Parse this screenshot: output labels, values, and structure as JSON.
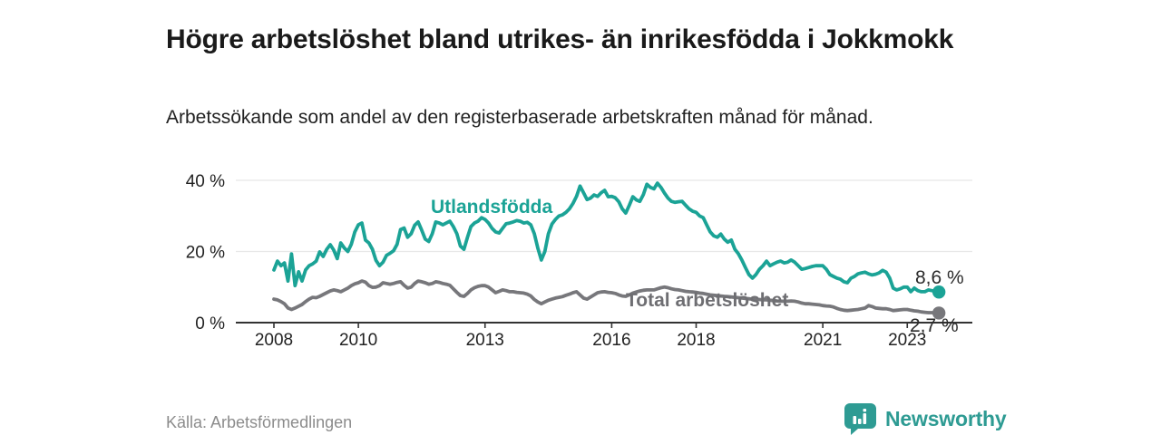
{
  "header": {
    "title": "Högre arbetslöshet bland utrikes- än inrikesfödda i Jokkmokk",
    "subtitle": "Arbetssökande som andel av den registerbaserade arbetskraften månad för månad."
  },
  "footer": {
    "source": "Källa: Arbetsförmedlingen"
  },
  "branding": {
    "name": "Newsworthy",
    "logo_icon": "bar-chart-speech-bubble"
  },
  "colors": {
    "teal": "#1BA396",
    "gray_line": "#77777B",
    "gray_label": "#6E6E72",
    "axis": "#333333",
    "grid": "#E8E8E8",
    "tick_text": "#222222",
    "title_text": "#1A1A1A",
    "subtitle_text": "#222222",
    "value_text": "#2B2B2B",
    "source_text": "#8C8C8C",
    "brand": "#2E9B93"
  },
  "chart_data": {
    "type": "line",
    "title": "Högre arbetslöshet bland utrikes- än inrikesfödda i Jokkmokk",
    "subtitle": "Arbetssökande som andel av den registerbaserade arbetskraften månad för månad.",
    "unit": "%",
    "x_start_year": 2008,
    "x_interval_months": 1,
    "ylim": [
      0,
      42
    ],
    "grid": "horizontal",
    "legend": "inline-labels",
    "y_ticks": [
      {
        "value": 0,
        "label": "0 %"
      },
      {
        "value": 20,
        "label": "20 %"
      },
      {
        "value": 40,
        "label": "40 %"
      }
    ],
    "x_ticks": [
      {
        "year": 2008,
        "label": "2008"
      },
      {
        "year": 2010,
        "label": "2010"
      },
      {
        "year": 2013,
        "label": "2013"
      },
      {
        "year": 2016,
        "label": "2016"
      },
      {
        "year": 2018,
        "label": "2018"
      },
      {
        "year": 2021,
        "label": "2021"
      },
      {
        "year": 2023,
        "label": "2023"
      }
    ],
    "series": [
      {
        "name": "Utlandsfödda",
        "color": "#1BA396",
        "end_label": "8,6 %",
        "end_value": 8.6,
        "values": [
          14.8,
          17.3,
          16.0,
          16.8,
          11.7,
          19.3,
          10.4,
          14.3,
          11.7,
          14.8,
          16.0,
          16.5,
          17.3,
          19.9,
          18.6,
          20.6,
          21.9,
          20.4,
          18.0,
          22.4,
          21.0,
          20.0,
          22.0,
          25.5,
          27.5,
          28.0,
          23.2,
          22.4,
          20.6,
          17.5,
          16.0,
          17.0,
          18.9,
          19.5,
          20.2,
          22.0,
          26.2,
          26.6,
          24.0,
          25.0,
          27.4,
          28.3,
          26.0,
          23.5,
          22.8,
          25.0,
          28.3,
          28.0,
          27.5,
          28.0,
          28.5,
          27.0,
          25.0,
          21.5,
          20.6,
          24.0,
          27.0,
          28.0,
          28.5,
          29.5,
          29.0,
          28.0,
          26.5,
          25.5,
          25.2,
          26.5,
          27.8,
          28.0,
          28.3,
          28.7,
          28.5,
          28.0,
          28.2,
          27.5,
          25.0,
          21.0,
          17.6,
          20.0,
          25.0,
          27.7,
          29.0,
          30.0,
          30.3,
          31.0,
          32.0,
          33.5,
          35.5,
          38.4,
          36.5,
          34.6,
          35.0,
          35.9,
          35.5,
          36.5,
          37.2,
          35.4,
          35.5,
          35.1,
          34.0,
          32.0,
          30.8,
          33.0,
          35.4,
          34.5,
          34.1,
          36.0,
          38.9,
          38.0,
          37.6,
          39.2,
          38.0,
          36.4,
          35.0,
          34.1,
          33.8,
          34.0,
          34.1,
          33.0,
          32.0,
          31.3,
          31.0,
          30.0,
          29.5,
          27.5,
          25.5,
          24.4,
          24.0,
          24.9,
          23.5,
          22.6,
          23.2,
          20.6,
          19.4,
          17.6,
          15.5,
          13.5,
          12.5,
          13.5,
          15.0,
          16.0,
          17.3,
          16.0,
          16.5,
          17.0,
          17.3,
          16.8,
          17.0,
          17.6,
          17.0,
          16.0,
          15.0,
          15.2,
          15.5,
          15.8,
          16.0,
          16.0,
          16.0,
          15.0,
          13.5,
          13.0,
          12.5,
          12.2,
          11.5,
          11.2,
          12.5,
          13.0,
          13.7,
          14.0,
          14.2,
          13.7,
          13.4,
          13.6,
          14.0,
          14.7,
          14.2,
          12.5,
          9.7,
          9.2,
          9.5,
          10.0,
          10.0,
          8.7,
          9.7,
          9.0,
          8.7,
          8.7,
          9.2,
          9.0,
          8.8,
          8.6
        ]
      },
      {
        "name": "Total arbetslöshet",
        "color": "#77777B",
        "end_label": "2,7 %",
        "end_value": 2.7,
        "values": [
          6.6,
          6.4,
          5.9,
          5.3,
          4.1,
          3.7,
          4.1,
          4.6,
          5.1,
          5.9,
          6.6,
          7.1,
          7.0,
          7.4,
          7.9,
          8.4,
          8.9,
          9.2,
          9.0,
          8.7,
          9.2,
          9.7,
          10.4,
          10.9,
          11.2,
          11.7,
          11.4,
          10.4,
          9.9,
          10.0,
          10.4,
          11.2,
          11.0,
          10.8,
          11.0,
          11.3,
          11.5,
          10.5,
          9.7,
          10.0,
          11.0,
          11.7,
          11.5,
          11.2,
          10.8,
          11.0,
          11.5,
          11.3,
          11.0,
          10.8,
          10.5,
          9.5,
          8.5,
          7.6,
          7.4,
          8.2,
          9.2,
          9.8,
          10.2,
          10.4,
          10.4,
          10.0,
          9.2,
          8.4,
          8.8,
          9.2,
          9.0,
          8.7,
          8.7,
          8.5,
          8.4,
          8.3,
          8.0,
          7.5,
          6.5,
          5.8,
          5.3,
          5.8,
          6.3,
          6.6,
          6.9,
          7.1,
          7.3,
          7.7,
          8.0,
          8.4,
          8.7,
          7.8,
          6.9,
          6.6,
          7.2,
          7.8,
          8.4,
          8.6,
          8.7,
          8.5,
          8.4,
          8.2,
          7.8,
          7.5,
          7.4,
          7.8,
          8.3,
          8.6,
          8.9,
          9.1,
          9.2,
          9.2,
          9.2,
          9.5,
          9.8,
          10.0,
          9.8,
          9.5,
          9.3,
          9.2,
          9.0,
          8.8,
          8.7,
          8.6,
          8.5,
          8.3,
          8.2,
          8.0,
          7.8,
          7.7,
          7.6,
          7.5,
          7.4,
          7.3,
          7.2,
          7.1,
          7.0,
          6.9,
          6.8,
          6.7,
          6.6,
          6.5,
          6.5,
          6.4,
          6.4,
          6.3,
          6.2,
          6.1,
          6.0,
          6.0,
          6.0,
          6.1,
          6.0,
          5.8,
          5.5,
          5.3,
          5.3,
          5.2,
          5.1,
          5.0,
          4.8,
          4.7,
          4.6,
          4.4,
          4.0,
          3.7,
          3.5,
          3.4,
          3.5,
          3.6,
          3.7,
          3.9,
          4.1,
          4.8,
          4.5,
          4.1,
          4.0,
          3.9,
          3.9,
          3.7,
          3.4,
          3.5,
          3.6,
          3.7,
          3.7,
          3.5,
          3.3,
          3.2,
          3.0,
          2.9,
          2.8,
          2.8,
          2.7,
          2.7
        ]
      }
    ]
  }
}
